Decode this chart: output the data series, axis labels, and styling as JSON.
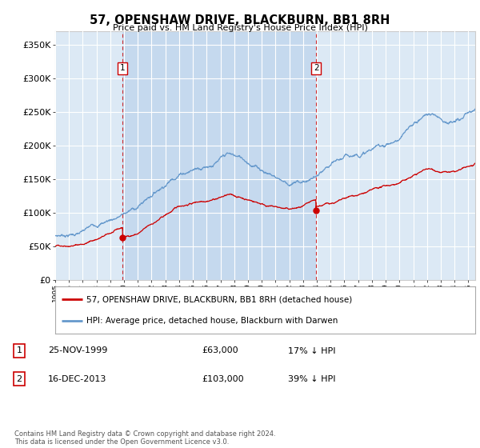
{
  "title": "57, OPENSHAW DRIVE, BLACKBURN, BB1 8RH",
  "subtitle": "Price paid vs. HM Land Registry's House Price Index (HPI)",
  "bg_color": "#dce9f5",
  "hpi_color": "#6699cc",
  "price_color": "#cc0000",
  "shade_color": "#c5d9ee",
  "ylim": [
    0,
    370000
  ],
  "yticks": [
    0,
    50000,
    100000,
    150000,
    200000,
    250000,
    300000,
    350000
  ],
  "ytick_labels": [
    "£0",
    "£50K",
    "£100K",
    "£150K",
    "£200K",
    "£250K",
    "£300K",
    "£350K"
  ],
  "t1_date": 1999.9,
  "t1_price": 63000,
  "t2_date": 2013.95,
  "t2_price": 103000,
  "legend_line1": "57, OPENSHAW DRIVE, BLACKBURN, BB1 8RH (detached house)",
  "legend_line2": "HPI: Average price, detached house, Blackburn with Darwen",
  "table_row1": [
    "1",
    "25-NOV-1999",
    "£63,000",
    "17% ↓ HPI"
  ],
  "table_row2": [
    "2",
    "16-DEC-2013",
    "£103,000",
    "39% ↓ HPI"
  ],
  "footnote": "Contains HM Land Registry data © Crown copyright and database right 2024.\nThis data is licensed under the Open Government Licence v3.0.",
  "xmin": 1995,
  "xmax": 2025.5
}
